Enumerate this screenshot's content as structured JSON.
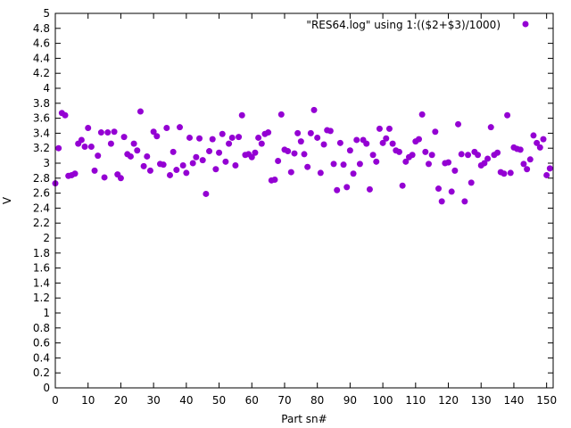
{
  "chart_data": {
    "type": "scatter",
    "title": "",
    "xlabel": "Part sn#",
    "ylabel": "V",
    "xlim": [
      0,
      152
    ],
    "ylim": [
      0,
      5
    ],
    "x_ticks": [
      0,
      10,
      20,
      30,
      40,
      50,
      60,
      70,
      80,
      90,
      100,
      110,
      120,
      130,
      140,
      150
    ],
    "y_ticks": [
      0,
      0.2,
      0.4,
      0.6,
      0.8,
      1,
      1.2,
      1.4,
      1.6,
      1.8,
      2,
      2.2,
      2.4,
      2.6,
      2.8,
      3,
      3.2,
      3.4,
      3.6,
      3.8,
      4,
      4.2,
      4.4,
      4.6,
      4.8,
      5
    ],
    "grid": false,
    "legend_position": "top-right",
    "series": [
      {
        "name": "\"RES64.log\" using 1:(($2+$3)/1000)",
        "color": "#9400d3",
        "x": [
          0,
          1,
          2,
          3,
          4,
          5,
          6,
          7,
          8,
          9,
          10,
          11,
          12,
          13,
          14,
          15,
          16,
          17,
          18,
          19,
          20,
          21,
          22,
          23,
          24,
          25,
          26,
          27,
          28,
          29,
          30,
          31,
          32,
          33,
          34,
          35,
          36,
          37,
          38,
          39,
          40,
          41,
          42,
          43,
          44,
          45,
          46,
          47,
          48,
          49,
          50,
          51,
          52,
          53,
          54,
          55,
          56,
          57,
          58,
          59,
          60,
          61,
          62,
          63,
          64,
          65,
          66,
          67,
          68,
          69,
          70,
          71,
          72,
          73,
          74,
          75,
          76,
          77,
          78,
          79,
          80,
          81,
          82,
          83,
          84,
          85,
          86,
          87,
          88,
          89,
          90,
          91,
          92,
          93,
          94,
          95,
          96,
          97,
          98,
          99,
          100,
          101,
          102,
          103,
          104,
          105,
          106,
          107,
          108,
          109,
          110,
          111,
          112,
          113,
          114,
          115,
          116,
          117,
          118,
          119,
          120,
          121,
          122,
          123,
          124,
          125,
          126,
          127,
          128,
          129,
          130,
          131,
          132,
          133,
          134,
          135,
          136,
          137,
          138,
          139,
          140,
          141,
          142,
          143,
          144,
          145,
          146,
          147,
          148,
          149,
          150,
          151
        ],
        "y": [
          2.73,
          3.2,
          3.67,
          3.64,
          2.83,
          2.84,
          2.86,
          3.26,
          3.31,
          3.22,
          3.47,
          3.22,
          2.9,
          3.1,
          3.41,
          2.81,
          3.41,
          3.26,
          3.42,
          2.85,
          2.8,
          3.35,
          3.12,
          3.09,
          3.26,
          3.17,
          3.69,
          2.96,
          3.09,
          2.9,
          3.42,
          3.36,
          2.99,
          2.98,
          3.47,
          2.84,
          3.15,
          2.91,
          3.48,
          2.97,
          2.87,
          3.34,
          3.0,
          3.08,
          3.33,
          3.04,
          2.59,
          3.16,
          3.32,
          2.92,
          3.14,
          3.39,
          3.02,
          3.26,
          3.34,
          2.97,
          3.35,
          3.64,
          3.11,
          3.12,
          3.08,
          3.14,
          3.34,
          3.26,
          3.39,
          3.41,
          2.77,
          2.78,
          3.03,
          3.65,
          3.18,
          3.16,
          2.88,
          3.13,
          3.4,
          3.29,
          3.12,
          2.95,
          3.4,
          3.71,
          3.34,
          2.87,
          3.25,
          3.44,
          3.43,
          2.99,
          2.64,
          3.27,
          2.98,
          2.68,
          3.17,
          2.86,
          3.31,
          2.99,
          3.31,
          3.26,
          2.65,
          3.11,
          3.02,
          3.46,
          3.27,
          3.33,
          3.46,
          3.26,
          3.17,
          3.15,
          2.7,
          3.02,
          3.08,
          3.11,
          3.29,
          3.32,
          3.65,
          3.15,
          2.99,
          3.11,
          3.42,
          2.66,
          2.49,
          3.0,
          3.01,
          2.62,
          2.9,
          3.52,
          3.12,
          2.49,
          3.11,
          2.74,
          3.15,
          3.11,
          2.97,
          3.0,
          3.06,
          3.48,
          3.11,
          3.14,
          2.88,
          2.86,
          3.64,
          2.87,
          3.21,
          3.19,
          3.18,
          2.99,
          2.92,
          3.05,
          3.37,
          3.27,
          3.21,
          3.32,
          2.84,
          2.93
        ]
      }
    ]
  }
}
